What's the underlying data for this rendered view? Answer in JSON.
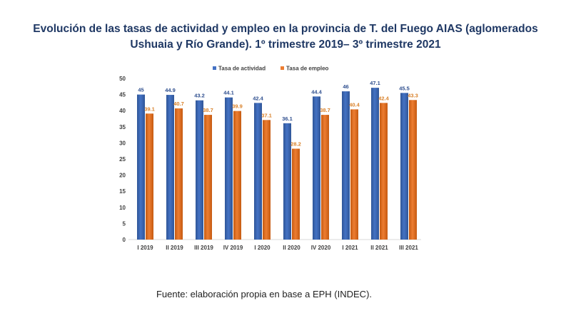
{
  "chart_data": {
    "type": "bar",
    "title": "Evolución de las tasas de actividad y empleo en la provincia de T. del Fuego AIAS (aglomerados Ushuaia y Río Grande). 1º trimestre 2019– 3º trimestre 2021",
    "categories": [
      "I 2019",
      "II 2019",
      "III 2019",
      "IV 2019",
      "I 2020",
      "II 2020",
      "IV 2020",
      "I 2021",
      "II 2021",
      "III 2021"
    ],
    "series": [
      {
        "name": "Tasa de actividad",
        "color": "#4472c4",
        "values": [
          45,
          44.9,
          43.2,
          44.1,
          42.4,
          36.1,
          44.4,
          46,
          47.1,
          45.5
        ]
      },
      {
        "name": "Tasa de empleo",
        "color": "#ed7d31",
        "values": [
          39.1,
          40.7,
          38.7,
          39.9,
          37.1,
          28.2,
          38.7,
          40.4,
          42.4,
          43.3
        ]
      }
    ],
    "data_labels": [
      [
        "45",
        "44.9",
        "43.2",
        "44.1",
        "42.4",
        "36.1",
        "44.4",
        "46",
        "47.1",
        "45.5"
      ],
      [
        "39.1",
        "40.7",
        "38.7",
        "39.9",
        "37.1",
        "28.2",
        "38.7",
        "40.4",
        "42.4",
        "43.3"
      ]
    ],
    "ylim": [
      0,
      50
    ],
    "yticks": [
      "0",
      "5",
      "10",
      "15",
      "20",
      "25",
      "30",
      "35",
      "40",
      "45",
      "50"
    ],
    "grid": false,
    "legend": "top-center"
  },
  "source": "Fuente: elaboración propia en base a EPH (INDEC)."
}
